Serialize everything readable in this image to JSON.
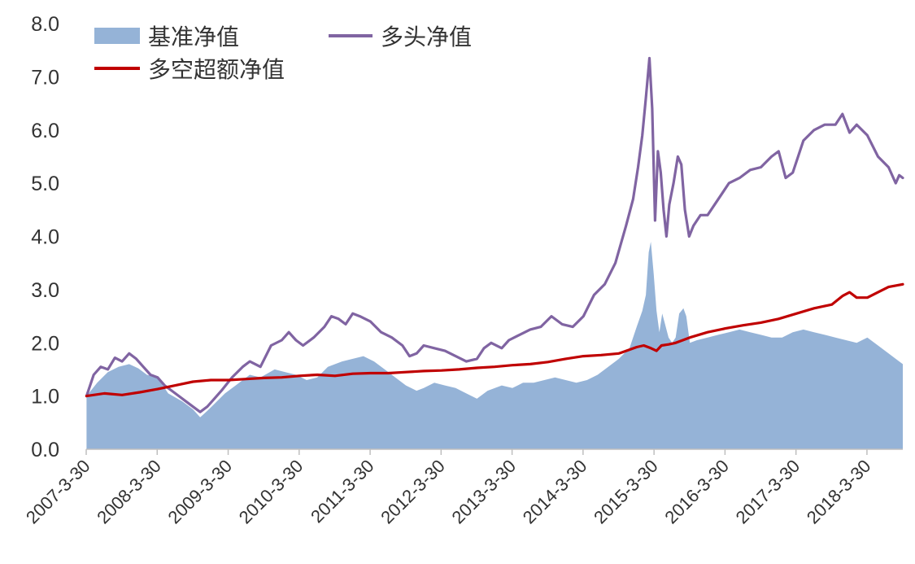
{
  "chart_data": {
    "type": "area",
    "title": "",
    "xlabel": "",
    "ylabel": "",
    "ylim": [
      0,
      8
    ],
    "yticks": [
      "0.0",
      "1.0",
      "2.0",
      "3.0",
      "4.0",
      "5.0",
      "6.0",
      "7.0",
      "8.0"
    ],
    "x_tick_labels": [
      "2007-3-30",
      "2008-3-30",
      "2009-3-30",
      "2010-3-30",
      "2011-3-30",
      "2012-3-30",
      "2013-3-30",
      "2014-3-30",
      "2015-3-30",
      "2016-3-30",
      "2017-3-30",
      "2018-3-30"
    ],
    "x_range": [
      2007.245,
      2018.75
    ],
    "grid": false,
    "legend_position": "top-left",
    "series": [
      {
        "name": "基准净值",
        "kind": "area",
        "color": "#95b3d7",
        "points": [
          [
            2007.25,
            1.0
          ],
          [
            2007.4,
            1.25
          ],
          [
            2007.55,
            1.45
          ],
          [
            2007.7,
            1.55
          ],
          [
            2007.85,
            1.6
          ],
          [
            2007.98,
            1.52
          ],
          [
            2008.1,
            1.4
          ],
          [
            2008.25,
            1.35
          ],
          [
            2008.4,
            1.05
          ],
          [
            2008.6,
            0.9
          ],
          [
            2008.75,
            0.75
          ],
          [
            2008.85,
            0.6
          ],
          [
            2008.95,
            0.72
          ],
          [
            2009.05,
            0.85
          ],
          [
            2009.2,
            1.05
          ],
          [
            2009.35,
            1.2
          ],
          [
            2009.55,
            1.4
          ],
          [
            2009.7,
            1.35
          ],
          [
            2009.9,
            1.5
          ],
          [
            2010.05,
            1.45
          ],
          [
            2010.2,
            1.4
          ],
          [
            2010.35,
            1.3
          ],
          [
            2010.5,
            1.35
          ],
          [
            2010.65,
            1.55
          ],
          [
            2010.85,
            1.65
          ],
          [
            2011.0,
            1.7
          ],
          [
            2011.15,
            1.75
          ],
          [
            2011.3,
            1.65
          ],
          [
            2011.45,
            1.5
          ],
          [
            2011.6,
            1.35
          ],
          [
            2011.75,
            1.2
          ],
          [
            2011.9,
            1.1
          ],
          [
            2012.0,
            1.15
          ],
          [
            2012.15,
            1.25
          ],
          [
            2012.3,
            1.2
          ],
          [
            2012.45,
            1.15
          ],
          [
            2012.6,
            1.05
          ],
          [
            2012.75,
            0.95
          ],
          [
            2012.9,
            1.1
          ],
          [
            2013.1,
            1.2
          ],
          [
            2013.25,
            1.15
          ],
          [
            2013.4,
            1.25
          ],
          [
            2013.55,
            1.25
          ],
          [
            2013.7,
            1.3
          ],
          [
            2013.85,
            1.35
          ],
          [
            2014.0,
            1.3
          ],
          [
            2014.15,
            1.25
          ],
          [
            2014.3,
            1.3
          ],
          [
            2014.45,
            1.4
          ],
          [
            2014.6,
            1.55
          ],
          [
            2014.75,
            1.7
          ],
          [
            2014.9,
            1.9
          ],
          [
            2015.0,
            2.3
          ],
          [
            2015.08,
            2.6
          ],
          [
            2015.13,
            2.9
          ],
          [
            2015.17,
            3.7
          ],
          [
            2015.2,
            3.9
          ],
          [
            2015.24,
            3.3
          ],
          [
            2015.28,
            2.6
          ],
          [
            2015.32,
            2.2
          ],
          [
            2015.36,
            2.55
          ],
          [
            2015.4,
            2.35
          ],
          [
            2015.45,
            2.1
          ],
          [
            2015.5,
            2.0
          ],
          [
            2015.55,
            2.1
          ],
          [
            2015.6,
            2.55
          ],
          [
            2015.66,
            2.65
          ],
          [
            2015.7,
            2.5
          ],
          [
            2015.75,
            2.0
          ],
          [
            2015.85,
            2.05
          ],
          [
            2016.0,
            2.1
          ],
          [
            2016.15,
            2.15
          ],
          [
            2016.3,
            2.2
          ],
          [
            2016.45,
            2.25
          ],
          [
            2016.6,
            2.2
          ],
          [
            2016.75,
            2.15
          ],
          [
            2016.9,
            2.1
          ],
          [
            2017.05,
            2.1
          ],
          [
            2017.2,
            2.2
          ],
          [
            2017.35,
            2.25
          ],
          [
            2017.5,
            2.2
          ],
          [
            2017.65,
            2.15
          ],
          [
            2017.8,
            2.1
          ],
          [
            2017.95,
            2.05
          ],
          [
            2018.1,
            2.0
          ],
          [
            2018.25,
            2.1
          ],
          [
            2018.4,
            1.95
          ],
          [
            2018.55,
            1.8
          ],
          [
            2018.7,
            1.65
          ],
          [
            2018.75,
            1.6
          ]
        ]
      },
      {
        "name": "多头净值",
        "kind": "line",
        "color": "#8064a2",
        "points": [
          [
            2007.25,
            1.0
          ],
          [
            2007.35,
            1.4
          ],
          [
            2007.45,
            1.55
          ],
          [
            2007.55,
            1.5
          ],
          [
            2007.65,
            1.72
          ],
          [
            2007.75,
            1.65
          ],
          [
            2007.85,
            1.8
          ],
          [
            2007.95,
            1.7
          ],
          [
            2008.05,
            1.55
          ],
          [
            2008.15,
            1.4
          ],
          [
            2008.25,
            1.35
          ],
          [
            2008.35,
            1.2
          ],
          [
            2008.45,
            1.1
          ],
          [
            2008.55,
            1.0
          ],
          [
            2008.65,
            0.9
          ],
          [
            2008.75,
            0.8
          ],
          [
            2008.85,
            0.7
          ],
          [
            2008.95,
            0.8
          ],
          [
            2009.05,
            0.95
          ],
          [
            2009.15,
            1.1
          ],
          [
            2009.3,
            1.35
          ],
          [
            2009.45,
            1.55
          ],
          [
            2009.55,
            1.65
          ],
          [
            2009.7,
            1.55
          ],
          [
            2009.85,
            1.95
          ],
          [
            2010.0,
            2.05
          ],
          [
            2010.1,
            2.2
          ],
          [
            2010.2,
            2.05
          ],
          [
            2010.3,
            1.95
          ],
          [
            2010.45,
            2.1
          ],
          [
            2010.6,
            2.3
          ],
          [
            2010.7,
            2.5
          ],
          [
            2010.8,
            2.45
          ],
          [
            2010.9,
            2.35
          ],
          [
            2011.0,
            2.55
          ],
          [
            2011.1,
            2.5
          ],
          [
            2011.25,
            2.4
          ],
          [
            2011.4,
            2.2
          ],
          [
            2011.55,
            2.1
          ],
          [
            2011.7,
            1.95
          ],
          [
            2011.8,
            1.75
          ],
          [
            2011.9,
            1.8
          ],
          [
            2012.0,
            1.95
          ],
          [
            2012.15,
            1.9
          ],
          [
            2012.3,
            1.85
          ],
          [
            2012.45,
            1.75
          ],
          [
            2012.6,
            1.65
          ],
          [
            2012.75,
            1.7
          ],
          [
            2012.85,
            1.9
          ],
          [
            2012.95,
            2.0
          ],
          [
            2013.1,
            1.9
          ],
          [
            2013.2,
            2.05
          ],
          [
            2013.35,
            2.15
          ],
          [
            2013.5,
            2.25
          ],
          [
            2013.65,
            2.3
          ],
          [
            2013.8,
            2.5
          ],
          [
            2013.95,
            2.35
          ],
          [
            2014.1,
            2.3
          ],
          [
            2014.25,
            2.5
          ],
          [
            2014.4,
            2.9
          ],
          [
            2014.55,
            3.1
          ],
          [
            2014.7,
            3.5
          ],
          [
            2014.85,
            4.2
          ],
          [
            2014.95,
            4.7
          ],
          [
            2015.02,
            5.3
          ],
          [
            2015.08,
            5.9
          ],
          [
            2015.13,
            6.6
          ],
          [
            2015.18,
            7.35
          ],
          [
            2015.22,
            6.4
          ],
          [
            2015.26,
            4.3
          ],
          [
            2015.3,
            5.6
          ],
          [
            2015.34,
            5.2
          ],
          [
            2015.38,
            4.5
          ],
          [
            2015.42,
            4.0
          ],
          [
            2015.46,
            4.6
          ],
          [
            2015.52,
            5.0
          ],
          [
            2015.58,
            5.5
          ],
          [
            2015.63,
            5.35
          ],
          [
            2015.68,
            4.5
          ],
          [
            2015.74,
            4.0
          ],
          [
            2015.8,
            4.2
          ],
          [
            2015.9,
            4.4
          ],
          [
            2016.0,
            4.4
          ],
          [
            2016.1,
            4.6
          ],
          [
            2016.2,
            4.8
          ],
          [
            2016.3,
            5.0
          ],
          [
            2016.45,
            5.1
          ],
          [
            2016.6,
            5.25
          ],
          [
            2016.75,
            5.3
          ],
          [
            2016.9,
            5.5
          ],
          [
            2017.0,
            5.6
          ],
          [
            2017.1,
            5.1
          ],
          [
            2017.2,
            5.2
          ],
          [
            2017.35,
            5.8
          ],
          [
            2017.5,
            6.0
          ],
          [
            2017.65,
            6.1
          ],
          [
            2017.8,
            6.1
          ],
          [
            2017.9,
            6.3
          ],
          [
            2018.0,
            5.95
          ],
          [
            2018.1,
            6.1
          ],
          [
            2018.25,
            5.9
          ],
          [
            2018.4,
            5.5
          ],
          [
            2018.55,
            5.3
          ],
          [
            2018.65,
            5.0
          ],
          [
            2018.7,
            5.15
          ],
          [
            2018.75,
            5.1
          ]
        ]
      },
      {
        "name": "多空超额净值",
        "kind": "line",
        "color": "#c00000",
        "points": [
          [
            2007.25,
            1.0
          ],
          [
            2007.5,
            1.05
          ],
          [
            2007.75,
            1.02
          ],
          [
            2008.0,
            1.07
          ],
          [
            2008.25,
            1.13
          ],
          [
            2008.5,
            1.2
          ],
          [
            2008.75,
            1.27
          ],
          [
            2009.0,
            1.3
          ],
          [
            2009.25,
            1.3
          ],
          [
            2009.5,
            1.32
          ],
          [
            2009.75,
            1.34
          ],
          [
            2010.0,
            1.35
          ],
          [
            2010.25,
            1.38
          ],
          [
            2010.5,
            1.4
          ],
          [
            2010.75,
            1.38
          ],
          [
            2011.0,
            1.42
          ],
          [
            2011.25,
            1.43
          ],
          [
            2011.5,
            1.43
          ],
          [
            2011.75,
            1.45
          ],
          [
            2012.0,
            1.47
          ],
          [
            2012.25,
            1.48
          ],
          [
            2012.5,
            1.5
          ],
          [
            2012.75,
            1.53
          ],
          [
            2013.0,
            1.55
          ],
          [
            2013.25,
            1.58
          ],
          [
            2013.5,
            1.6
          ],
          [
            2013.75,
            1.64
          ],
          [
            2014.0,
            1.7
          ],
          [
            2014.25,
            1.75
          ],
          [
            2014.5,
            1.77
          ],
          [
            2014.75,
            1.8
          ],
          [
            2015.0,
            1.92
          ],
          [
            2015.1,
            1.95
          ],
          [
            2015.2,
            1.9
          ],
          [
            2015.28,
            1.85
          ],
          [
            2015.35,
            1.95
          ],
          [
            2015.45,
            1.97
          ],
          [
            2015.55,
            2.0
          ],
          [
            2015.65,
            2.05
          ],
          [
            2015.75,
            2.1
          ],
          [
            2016.0,
            2.2
          ],
          [
            2016.25,
            2.27
          ],
          [
            2016.5,
            2.33
          ],
          [
            2016.75,
            2.38
          ],
          [
            2017.0,
            2.45
          ],
          [
            2017.25,
            2.55
          ],
          [
            2017.5,
            2.65
          ],
          [
            2017.75,
            2.72
          ],
          [
            2017.9,
            2.88
          ],
          [
            2018.0,
            2.95
          ],
          [
            2018.1,
            2.85
          ],
          [
            2018.25,
            2.85
          ],
          [
            2018.4,
            2.95
          ],
          [
            2018.55,
            3.05
          ],
          [
            2018.75,
            3.1
          ]
        ]
      }
    ]
  }
}
